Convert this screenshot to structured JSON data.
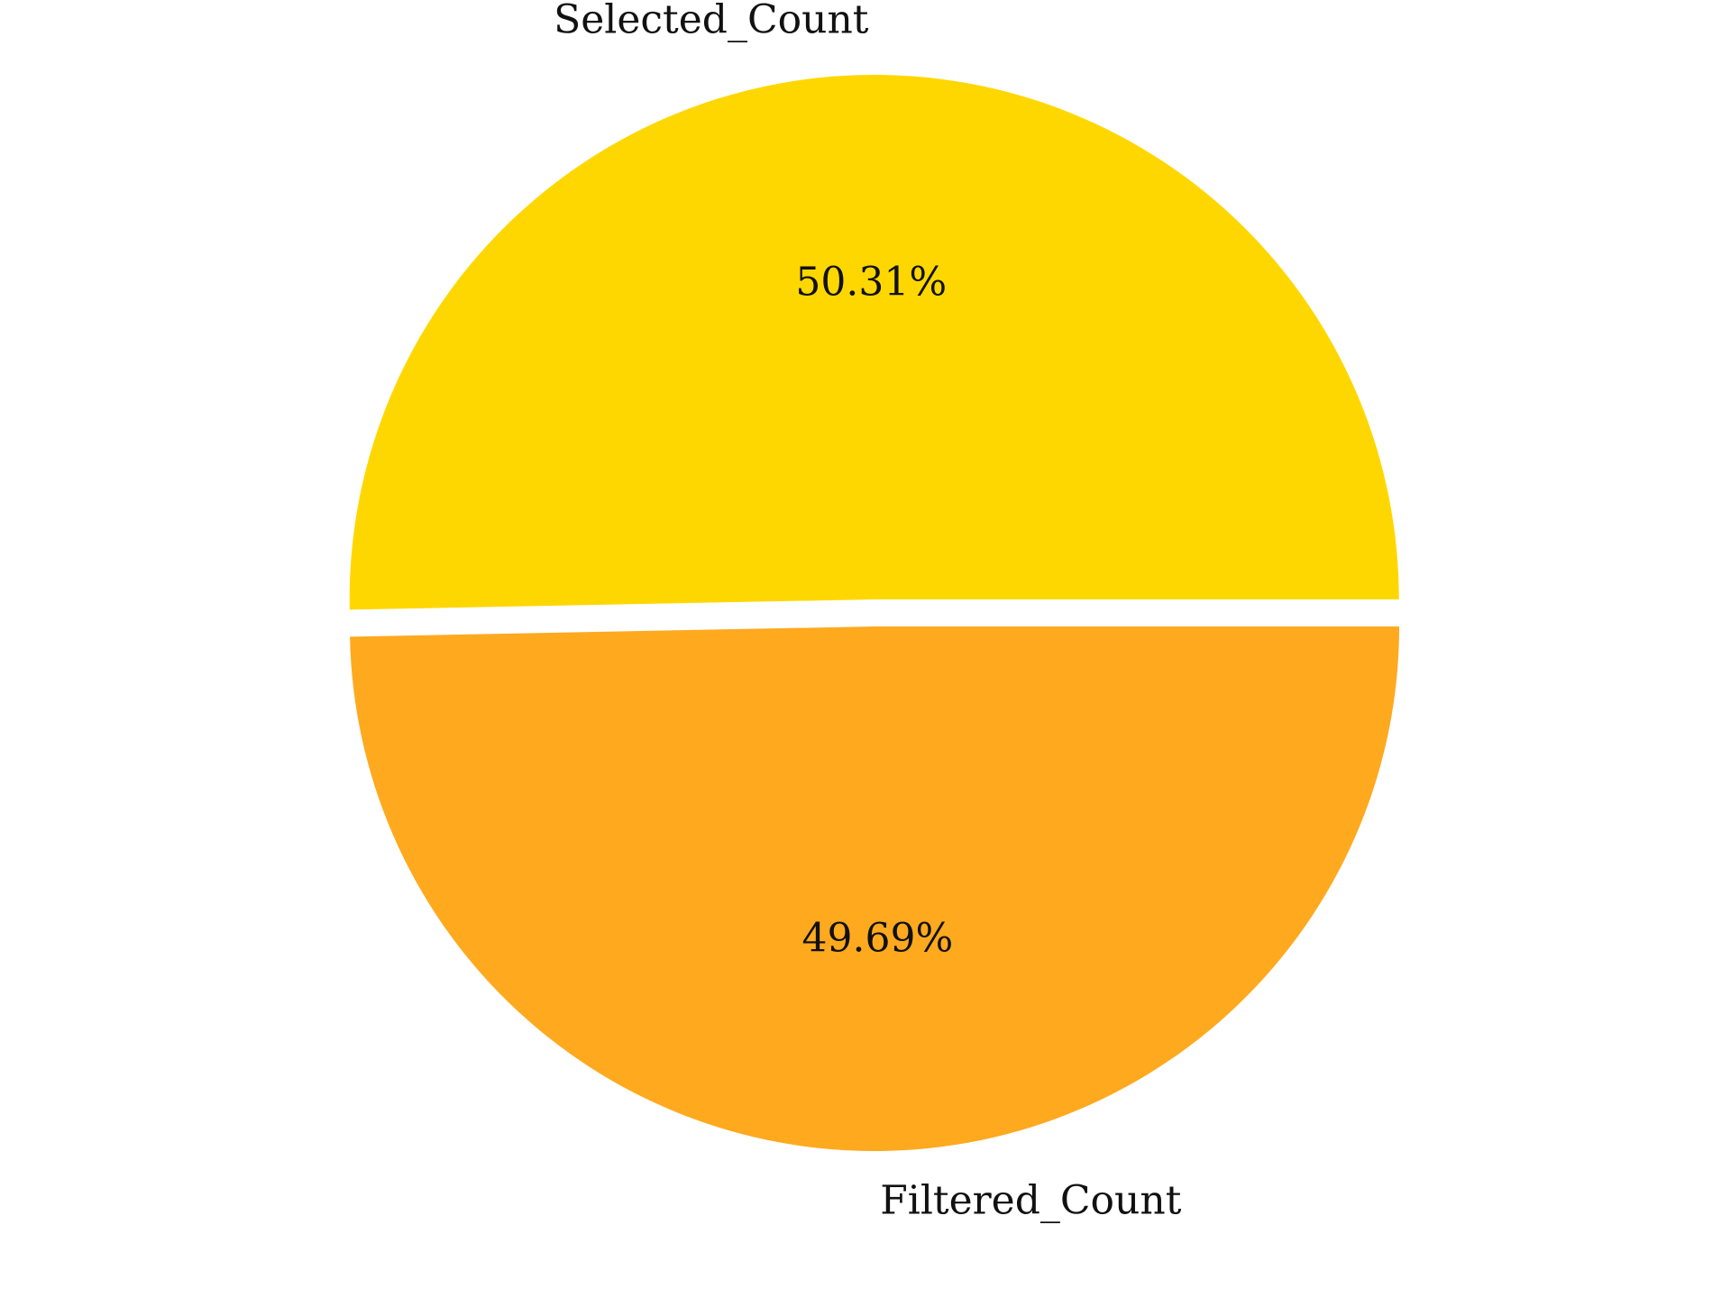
{
  "chart_data": {
    "type": "pie",
    "slices": [
      {
        "label": "Selected_Count",
        "percent": 50.31,
        "percent_label": "50.31%",
        "color": "#FFD700",
        "exploded": true
      },
      {
        "label": "Filtered_Count",
        "percent": 49.69,
        "percent_label": "49.69%",
        "color": "#FFA91F",
        "exploded": false
      }
    ],
    "start_angle_deg": 0,
    "direction": "counterclockwise",
    "legend": "none"
  }
}
